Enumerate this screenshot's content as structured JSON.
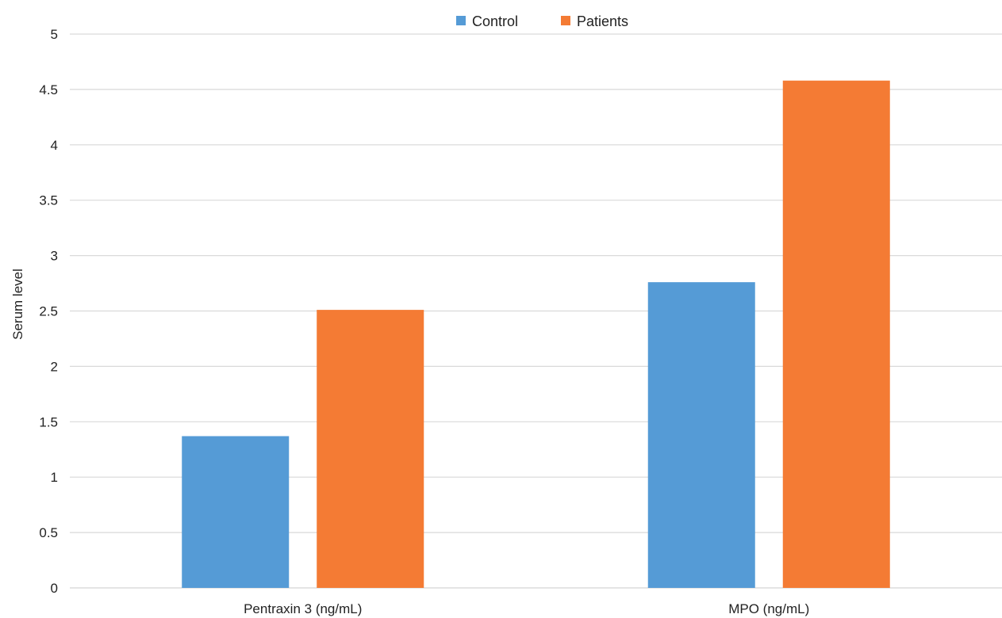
{
  "chart_data": {
    "type": "bar",
    "title": "",
    "xlabel": "",
    "ylabel": "Serum level",
    "categories": [
      "Pentraxin 3 (ng/mL)",
      "MPO (ng/mL)"
    ],
    "series": [
      {
        "name": "Control",
        "color": "#559bd6",
        "values": [
          1.37,
          2.76
        ]
      },
      {
        "name": "Patients",
        "color": "#f47b34",
        "values": [
          2.51,
          4.58
        ]
      }
    ],
    "ylim": [
      0,
      5
    ],
    "yticks": [
      "0",
      "0.5",
      "1",
      "1.5",
      "2",
      "2.5",
      "3",
      "3.5",
      "4",
      "4.5",
      "5"
    ],
    "grid": true,
    "legend_position": "top-center",
    "gridline_color": "#d9d9d9"
  }
}
